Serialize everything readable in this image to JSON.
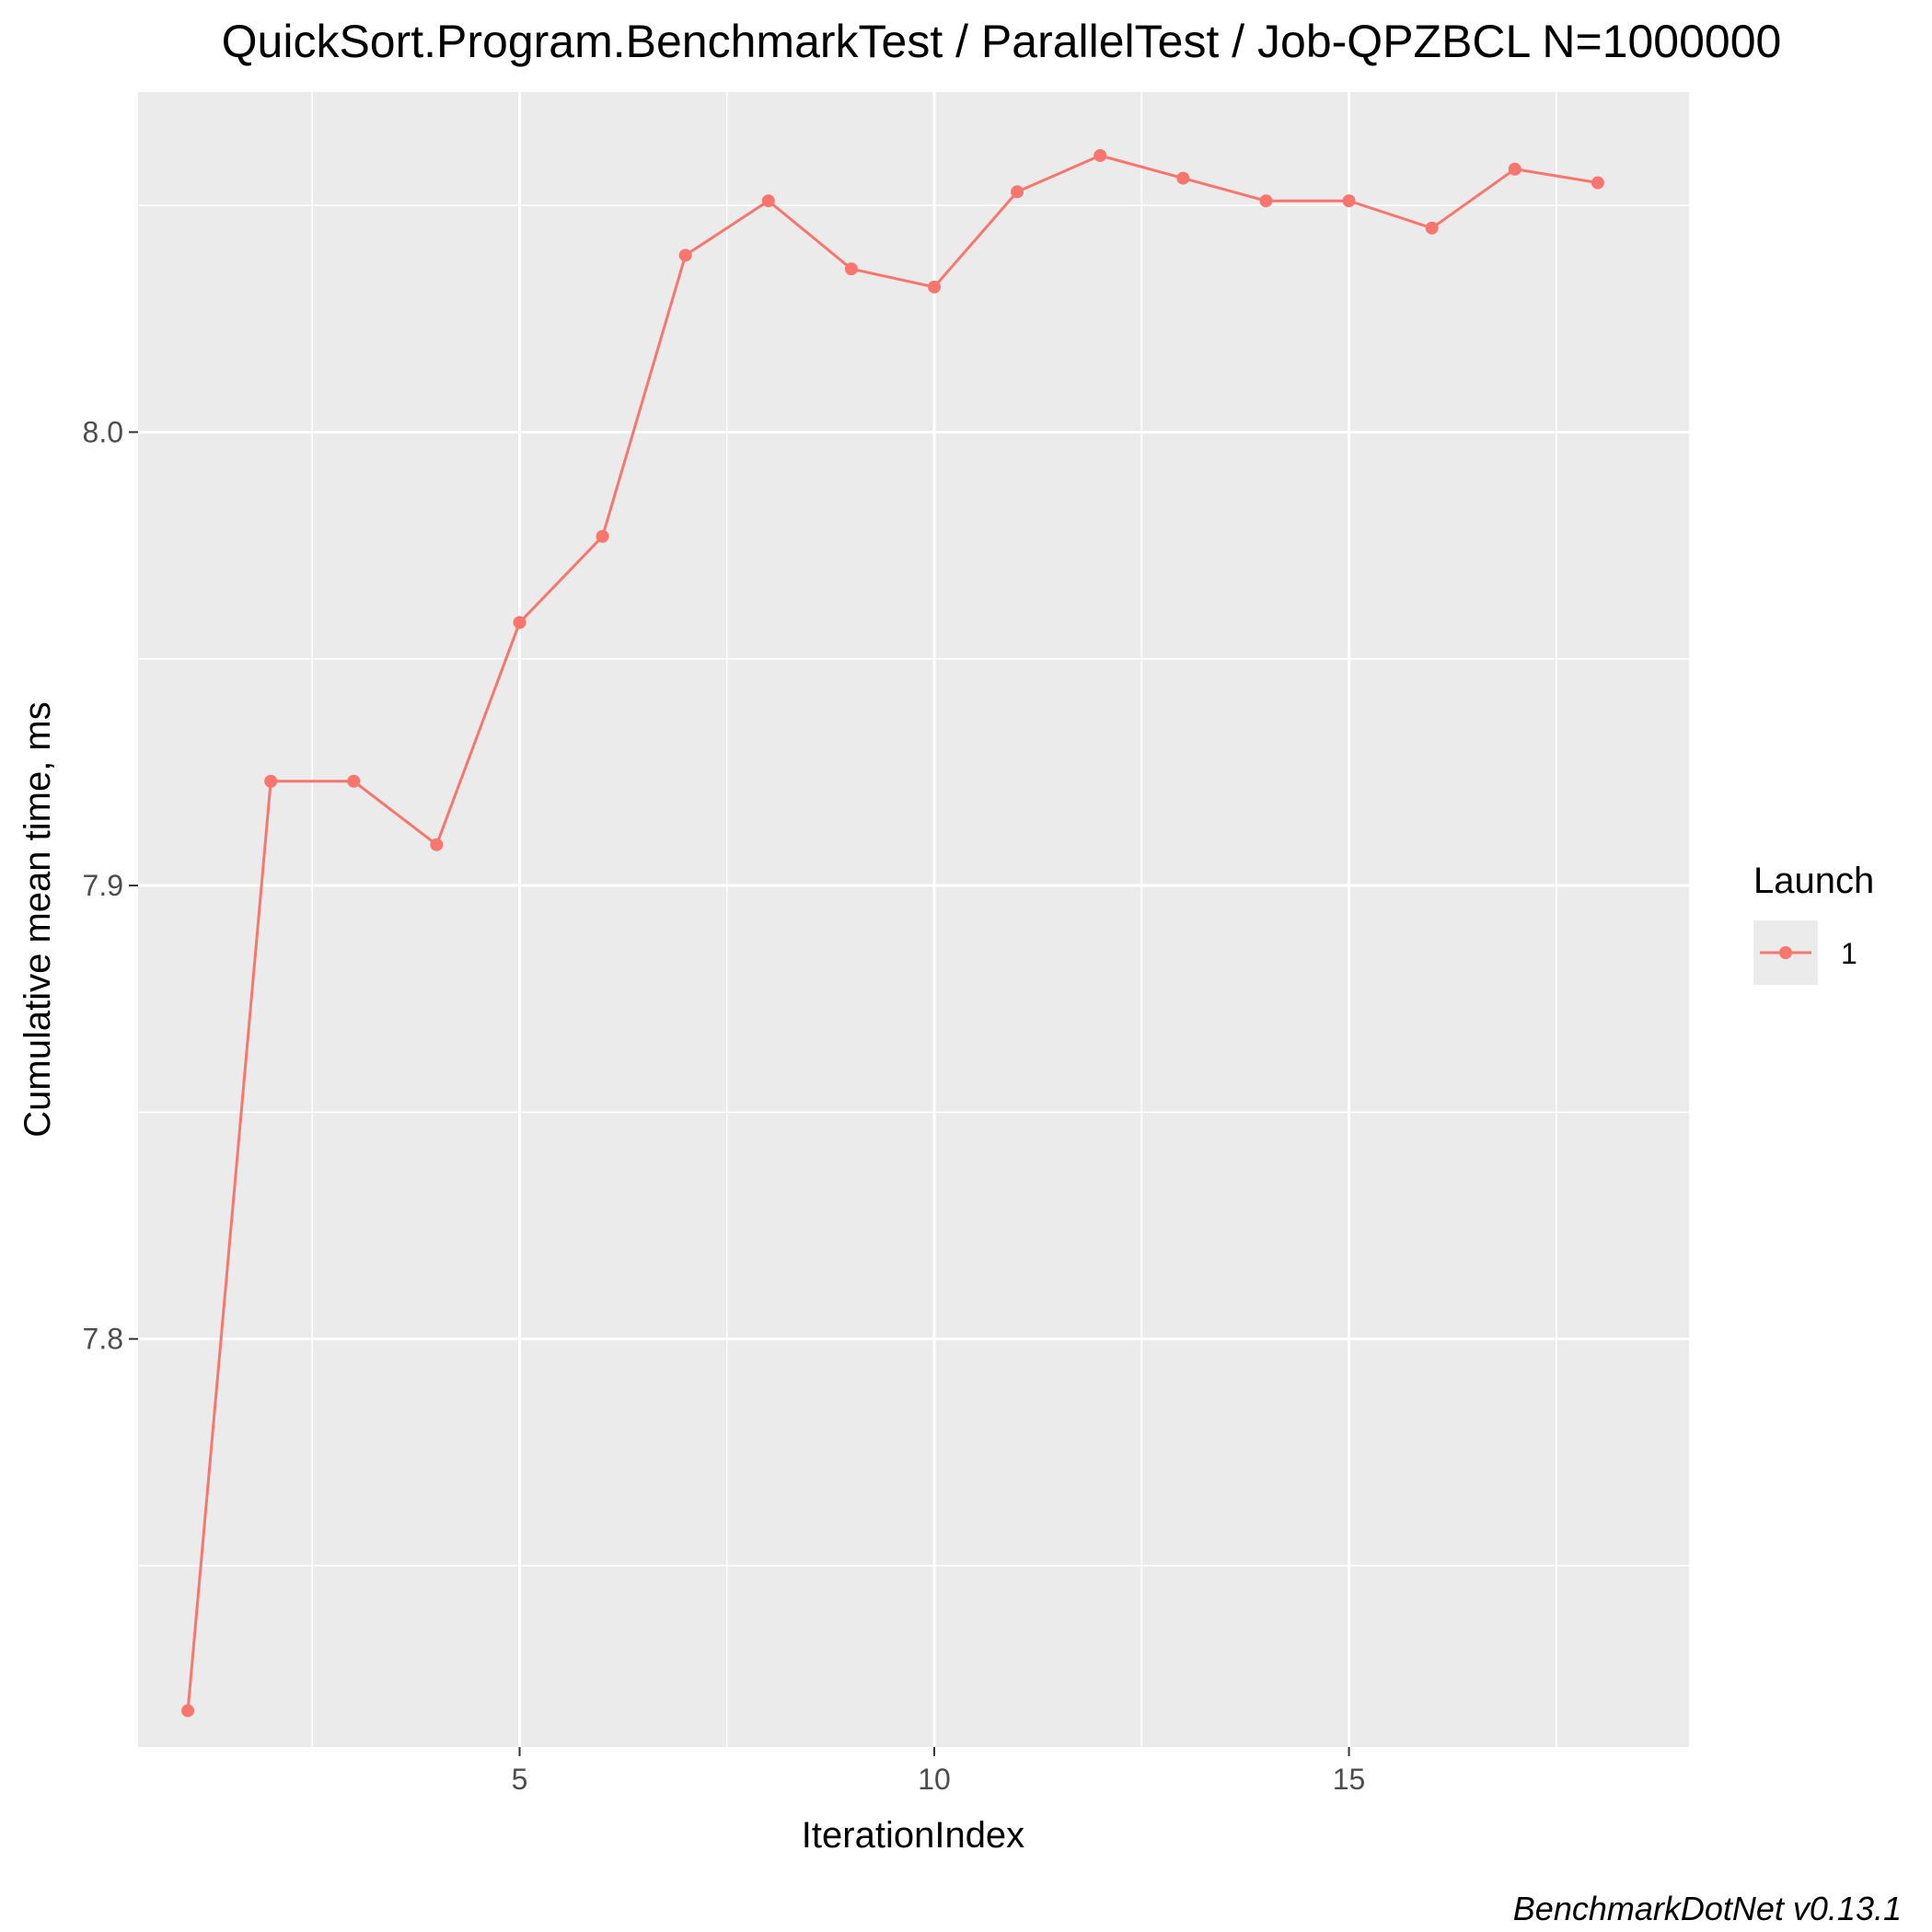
{
  "chart_data": {
    "type": "line",
    "title": "QuickSort.Program.BenchmarkTest / ParallelTest / Job-QPZBCL N=1000000",
    "xlabel": "IterationIndex",
    "ylabel": "Cumulative mean time, ms",
    "caption": "BenchmarkDotNet v0.13.1",
    "xlim": [
      0.4,
      19.1
    ],
    "ylim": [
      7.71,
      8.075
    ],
    "x_ticks": [
      5,
      10,
      15
    ],
    "x_tick_labels": [
      "5",
      "10",
      "15"
    ],
    "y_ticks": [
      7.8,
      7.9,
      8.0
    ],
    "y_tick_labels": [
      "7.8",
      "7.9",
      "8.0"
    ],
    "grid": true,
    "legend": {
      "title": "Launch",
      "position": "right",
      "entries": [
        "1"
      ]
    },
    "series": [
      {
        "name": "1",
        "color": "#f8766d",
        "x": [
          1,
          2,
          3,
          4,
          5,
          6,
          7,
          8,
          9,
          10,
          11,
          12,
          13,
          14,
          15,
          16,
          17,
          18
        ],
        "y": [
          7.718,
          7.923,
          7.923,
          7.909,
          7.958,
          7.977,
          8.039,
          8.051,
          8.036,
          8.032,
          8.053,
          8.061,
          8.056,
          8.051,
          8.051,
          8.045,
          8.058,
          8.055
        ]
      }
    ]
  }
}
